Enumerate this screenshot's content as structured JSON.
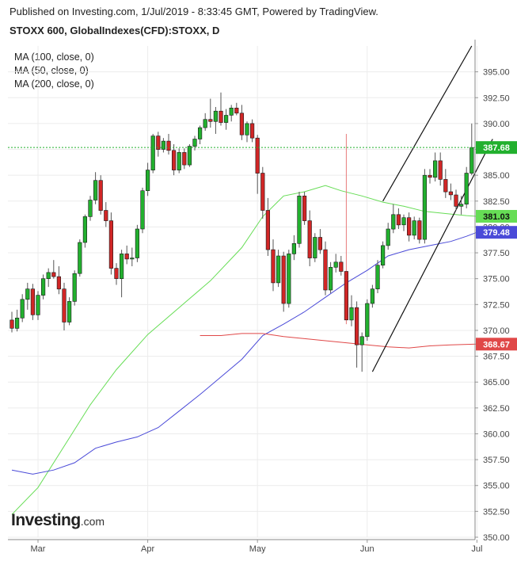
{
  "header": {
    "publisher_line": "Published on Investing.com, 1/Jul/2019 - 8:33:45 GMT, Powered by TradingView.",
    "symbol_line": "STOXX 600, GlobalIndexes(CFD):STOXX, D"
  },
  "logo": {
    "brand": "Investing",
    "suffix": ".com"
  },
  "colors": {
    "up": "#22b02e",
    "down": "#d12626",
    "ma50": "#66dd55",
    "ma100": "#4a4ad8",
    "ma200": "#e04848",
    "last_price": "#22b02e",
    "channel": "#111111",
    "grid": "#ececec",
    "spike": "#e77b7b"
  },
  "chart_data": {
    "type": "candlestick",
    "title": "STOXX 600, GlobalIndexes(CFD):STOXX, D",
    "ylim": [
      350,
      397.5
    ],
    "y_ticks": [
      "350.00",
      "352.50",
      "355.00",
      "357.50",
      "360.00",
      "362.50",
      "365.00",
      "367.50",
      "370.00",
      "372.50",
      "375.00",
      "377.50",
      "380.00",
      "382.50",
      "385.00",
      "387.50",
      "390.00",
      "392.50",
      "395.00"
    ],
    "x_ticks": [
      {
        "label": "Mar",
        "index": 5
      },
      {
        "label": "Apr",
        "index": 26
      },
      {
        "label": "May",
        "index": 47
      },
      {
        "label": "Jun",
        "index": 68
      },
      {
        "label": "Jul",
        "index": 89
      }
    ],
    "legend": [
      "MA (100, close, 0)",
      "MA (50, close, 0)",
      "MA (200, close, 0)"
    ],
    "ma_labels": {
      "ma50": {
        "value": 381.03,
        "label": "381.03"
      },
      "ma100": {
        "value": 379.48,
        "label": "379.48"
      },
      "ma200": {
        "value": 368.67,
        "label": "368.67"
      }
    },
    "last_price": {
      "value": 387.68,
      "label": "387.68"
    },
    "candles": [
      {
        "o": 371.0,
        "h": 371.8,
        "l": 369.8,
        "c": 370.2
      },
      {
        "o": 370.2,
        "h": 372.0,
        "l": 369.9,
        "c": 371.2
      },
      {
        "o": 371.2,
        "h": 373.5,
        "l": 370.8,
        "c": 373.0
      },
      {
        "o": 373.0,
        "h": 374.6,
        "l": 372.0,
        "c": 374.0
      },
      {
        "o": 374.0,
        "h": 374.5,
        "l": 371.0,
        "c": 371.5
      },
      {
        "o": 371.5,
        "h": 373.8,
        "l": 371.0,
        "c": 373.4
      },
      {
        "o": 373.4,
        "h": 375.4,
        "l": 373.0,
        "c": 375.0
      },
      {
        "o": 375.0,
        "h": 376.0,
        "l": 374.2,
        "c": 375.6
      },
      {
        "o": 375.6,
        "h": 376.8,
        "l": 375.0,
        "c": 375.2
      },
      {
        "o": 375.2,
        "h": 376.2,
        "l": 373.5,
        "c": 374.0
      },
      {
        "o": 374.0,
        "h": 374.6,
        "l": 370.0,
        "c": 370.8
      },
      {
        "o": 370.8,
        "h": 373.2,
        "l": 370.5,
        "c": 372.8
      },
      {
        "o": 372.8,
        "h": 375.8,
        "l": 372.4,
        "c": 375.5
      },
      {
        "o": 375.5,
        "h": 378.8,
        "l": 375.2,
        "c": 378.5
      },
      {
        "o": 378.5,
        "h": 381.2,
        "l": 378.0,
        "c": 381.0
      },
      {
        "o": 381.0,
        "h": 383.0,
        "l": 380.6,
        "c": 382.6
      },
      {
        "o": 382.6,
        "h": 385.3,
        "l": 382.2,
        "c": 384.5
      },
      {
        "o": 384.5,
        "h": 385.0,
        "l": 381.2,
        "c": 381.6
      },
      {
        "o": 381.6,
        "h": 382.4,
        "l": 380.0,
        "c": 380.6
      },
      {
        "o": 380.6,
        "h": 381.4,
        "l": 375.4,
        "c": 376.0
      },
      {
        "o": 376.0,
        "h": 376.5,
        "l": 374.4,
        "c": 375.0
      },
      {
        "o": 375.0,
        "h": 377.8,
        "l": 373.2,
        "c": 377.4
      },
      {
        "o": 377.4,
        "h": 378.2,
        "l": 376.4,
        "c": 376.9
      },
      {
        "o": 376.9,
        "h": 378.0,
        "l": 376.2,
        "c": 377.0
      },
      {
        "o": 377.0,
        "h": 380.2,
        "l": 376.6,
        "c": 379.8
      },
      {
        "o": 379.8,
        "h": 383.8,
        "l": 379.4,
        "c": 383.5
      },
      {
        "o": 383.5,
        "h": 386.2,
        "l": 383.0,
        "c": 385.5
      },
      {
        "o": 385.5,
        "h": 389.0,
        "l": 385.2,
        "c": 388.8
      },
      {
        "o": 388.8,
        "h": 389.2,
        "l": 386.8,
        "c": 387.5
      },
      {
        "o": 387.5,
        "h": 388.6,
        "l": 387.2,
        "c": 388.3
      },
      {
        "o": 388.3,
        "h": 389.0,
        "l": 387.0,
        "c": 387.4
      },
      {
        "o": 387.4,
        "h": 388.0,
        "l": 385.0,
        "c": 385.5
      },
      {
        "o": 385.5,
        "h": 387.6,
        "l": 385.2,
        "c": 387.2
      },
      {
        "o": 387.2,
        "h": 387.6,
        "l": 385.6,
        "c": 386.0
      },
      {
        "o": 386.0,
        "h": 388.0,
        "l": 385.8,
        "c": 387.8
      },
      {
        "o": 387.8,
        "h": 388.8,
        "l": 387.4,
        "c": 388.5
      },
      {
        "o": 388.5,
        "h": 389.8,
        "l": 388.0,
        "c": 389.6
      },
      {
        "o": 389.6,
        "h": 391.0,
        "l": 389.3,
        "c": 390.4
      },
      {
        "o": 390.4,
        "h": 392.4,
        "l": 389.6,
        "c": 390.2
      },
      {
        "o": 390.2,
        "h": 391.6,
        "l": 389.0,
        "c": 391.2
      },
      {
        "o": 391.2,
        "h": 393.0,
        "l": 389.8,
        "c": 390.1
      },
      {
        "o": 390.1,
        "h": 391.4,
        "l": 389.4,
        "c": 390.8
      },
      {
        "o": 390.8,
        "h": 391.8,
        "l": 390.2,
        "c": 391.5
      },
      {
        "o": 391.5,
        "h": 392.0,
        "l": 390.8,
        "c": 391.0
      },
      {
        "o": 391.0,
        "h": 391.8,
        "l": 388.4,
        "c": 388.9
      },
      {
        "o": 388.9,
        "h": 390.2,
        "l": 388.2,
        "c": 390.0
      },
      {
        "o": 390.0,
        "h": 390.4,
        "l": 388.2,
        "c": 388.6
      },
      {
        "o": 388.6,
        "h": 388.9,
        "l": 383.2,
        "c": 385.2
      },
      {
        "o": 385.2,
        "h": 385.8,
        "l": 380.8,
        "c": 381.6
      },
      {
        "o": 381.6,
        "h": 382.8,
        "l": 377.2,
        "c": 377.8
      },
      {
        "o": 377.8,
        "h": 378.8,
        "l": 373.8,
        "c": 374.6
      },
      {
        "o": 374.6,
        "h": 377.8,
        "l": 374.2,
        "c": 377.2
      },
      {
        "o": 377.2,
        "h": 377.6,
        "l": 371.8,
        "c": 372.6
      },
      {
        "o": 372.6,
        "h": 377.8,
        "l": 372.2,
        "c": 377.4
      },
      {
        "o": 377.4,
        "h": 379.2,
        "l": 376.8,
        "c": 378.4
      },
      {
        "o": 378.4,
        "h": 383.4,
        "l": 378.0,
        "c": 383.0
      },
      {
        "o": 383.0,
        "h": 383.4,
        "l": 380.2,
        "c": 380.6
      },
      {
        "o": 380.6,
        "h": 381.6,
        "l": 376.2,
        "c": 377.0
      },
      {
        "o": 377.0,
        "h": 379.4,
        "l": 376.6,
        "c": 379.0
      },
      {
        "o": 379.0,
        "h": 379.8,
        "l": 377.4,
        "c": 377.8
      },
      {
        "o": 377.8,
        "h": 378.6,
        "l": 373.4,
        "c": 373.9
      },
      {
        "o": 373.9,
        "h": 376.6,
        "l": 373.6,
        "c": 376.1
      },
      {
        "o": 376.1,
        "h": 377.4,
        "l": 375.6,
        "c": 376.6
      },
      {
        "o": 376.6,
        "h": 377.2,
        "l": 375.3,
        "c": 375.7
      },
      {
        "o": 375.7,
        "h": 389.0,
        "l": 370.6,
        "c": 371.0
      },
      {
        "o": 371.0,
        "h": 373.4,
        "l": 370.4,
        "c": 372.2
      },
      {
        "o": 372.2,
        "h": 372.8,
        "l": 366.4,
        "c": 368.6
      },
      {
        "o": 368.6,
        "h": 369.8,
        "l": 366.0,
        "c": 369.4
      },
      {
        "o": 369.4,
        "h": 373.0,
        "l": 369.0,
        "c": 372.6
      },
      {
        "o": 372.6,
        "h": 374.4,
        "l": 372.2,
        "c": 374.0
      },
      {
        "o": 374.0,
        "h": 376.8,
        "l": 373.6,
        "c": 376.3
      },
      {
        "o": 376.3,
        "h": 378.6,
        "l": 376.0,
        "c": 378.2
      },
      {
        "o": 378.2,
        "h": 380.4,
        "l": 377.8,
        "c": 379.8
      },
      {
        "o": 379.8,
        "h": 382.2,
        "l": 379.4,
        "c": 381.2
      },
      {
        "o": 381.2,
        "h": 381.8,
        "l": 379.8,
        "c": 380.2
      },
      {
        "o": 380.2,
        "h": 381.2,
        "l": 379.6,
        "c": 380.9
      },
      {
        "o": 380.9,
        "h": 381.4,
        "l": 378.6,
        "c": 379.2
      },
      {
        "o": 379.2,
        "h": 381.0,
        "l": 378.8,
        "c": 380.6
      },
      {
        "o": 380.6,
        "h": 380.9,
        "l": 378.4,
        "c": 378.8
      },
      {
        "o": 378.8,
        "h": 385.6,
        "l": 378.4,
        "c": 385.0
      },
      {
        "o": 385.0,
        "h": 385.6,
        "l": 384.2,
        "c": 384.8
      },
      {
        "o": 384.8,
        "h": 387.2,
        "l": 384.4,
        "c": 386.4
      },
      {
        "o": 386.4,
        "h": 387.2,
        "l": 384.0,
        "c": 384.6
      },
      {
        "o": 384.6,
        "h": 385.6,
        "l": 382.8,
        "c": 383.4
      },
      {
        "o": 383.4,
        "h": 384.2,
        "l": 382.6,
        "c": 383.1
      },
      {
        "o": 383.1,
        "h": 383.6,
        "l": 381.6,
        "c": 382.0
      },
      {
        "o": 382.0,
        "h": 383.0,
        "l": 381.2,
        "c": 382.2
      },
      {
        "o": 382.2,
        "h": 385.8,
        "l": 381.8,
        "c": 385.2
      },
      {
        "o": 385.2,
        "h": 390.0,
        "l": 385.0,
        "c": 387.68
      }
    ],
    "ma50_series": [
      [
        0,
        352.2
      ],
      [
        5,
        354.8
      ],
      [
        10,
        358.8
      ],
      [
        15,
        362.8
      ],
      [
        20,
        366.2
      ],
      [
        26,
        369.6
      ],
      [
        32,
        372.2
      ],
      [
        38,
        374.8
      ],
      [
        44,
        378.0
      ],
      [
        48,
        381.0
      ],
      [
        52,
        383.0
      ],
      [
        56,
        383.4
      ],
      [
        60,
        384.0
      ],
      [
        63,
        383.5
      ],
      [
        67,
        383.0
      ],
      [
        71,
        382.4
      ],
      [
        75,
        382.0
      ],
      [
        79,
        381.5
      ],
      [
        83,
        381.3
      ],
      [
        87,
        381.1
      ],
      [
        89,
        381.03
      ]
    ],
    "ma100_series": [
      [
        0,
        356.5
      ],
      [
        4,
        356.1
      ],
      [
        8,
        356.5
      ],
      [
        12,
        357.2
      ],
      [
        16,
        358.6
      ],
      [
        20,
        359.2
      ],
      [
        24,
        359.7
      ],
      [
        28,
        360.6
      ],
      [
        32,
        362.2
      ],
      [
        36,
        363.8
      ],
      [
        40,
        365.5
      ],
      [
        44,
        367.2
      ],
      [
        48,
        369.5
      ],
      [
        52,
        370.6
      ],
      [
        56,
        371.8
      ],
      [
        60,
        373.2
      ],
      [
        64,
        374.6
      ],
      [
        68,
        375.8
      ],
      [
        72,
        377.2
      ],
      [
        76,
        377.8
      ],
      [
        80,
        378.2
      ],
      [
        84,
        378.6
      ],
      [
        87,
        379.1
      ],
      [
        89,
        379.48
      ]
    ],
    "ma200_series": [
      [
        36,
        369.5
      ],
      [
        40,
        369.5
      ],
      [
        44,
        369.7
      ],
      [
        48,
        369.7
      ],
      [
        52,
        369.4
      ],
      [
        56,
        369.2
      ],
      [
        60,
        369.0
      ],
      [
        64,
        368.8
      ],
      [
        68,
        368.6
      ],
      [
        72,
        368.4
      ],
      [
        76,
        368.3
      ],
      [
        80,
        368.5
      ],
      [
        84,
        368.6
      ],
      [
        89,
        368.67
      ]
    ],
    "channel_lines": [
      {
        "x0": 69,
        "y0": 366.0,
        "x1": 92,
        "y1": 388.5
      },
      {
        "x0": 71,
        "y0": 382.5,
        "x1": 88,
        "y1": 397.5
      }
    ]
  }
}
